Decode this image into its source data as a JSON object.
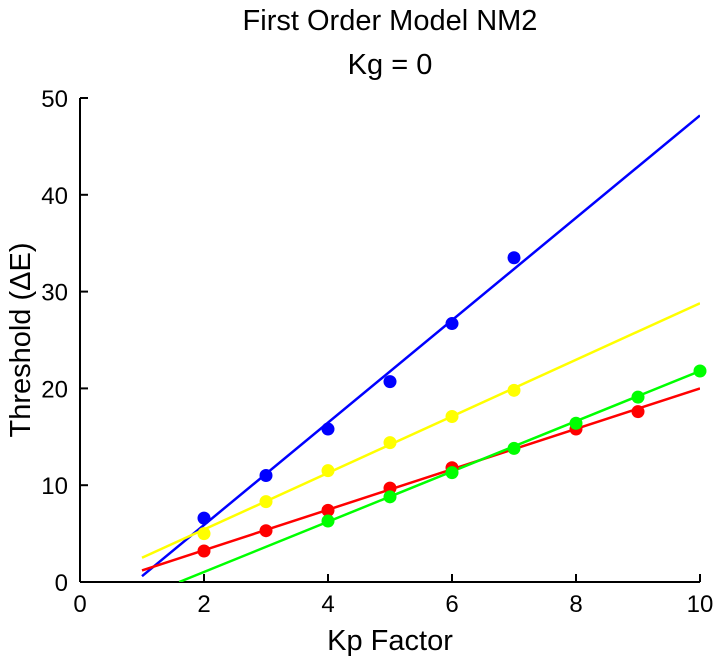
{
  "chart_data": {
    "type": "scatter",
    "title": "First Order Model NM2",
    "subtitle": "Kg = 0",
    "xlabel": "Kp Factor",
    "ylabel": "Threshold (ΔE)",
    "xlim": [
      0,
      10
    ],
    "ylim": [
      0,
      50
    ],
    "xticks": [
      0,
      2,
      4,
      6,
      8,
      10
    ],
    "yticks": [
      0,
      10,
      20,
      30,
      40,
      50
    ],
    "grid": false,
    "legend": "none",
    "series": [
      {
        "color": "#0000ff",
        "points": [
          [
            2,
            6.6
          ],
          [
            3,
            11.0
          ],
          [
            4,
            15.8
          ],
          [
            5,
            20.7
          ],
          [
            6,
            26.7
          ],
          [
            7,
            33.5
          ]
        ],
        "fit_line": [
          [
            1,
            0.6
          ],
          [
            10,
            48.2
          ]
        ]
      },
      {
        "color": "#ffff00",
        "points": [
          [
            2,
            5.0
          ],
          [
            3,
            8.3
          ],
          [
            4,
            11.5
          ],
          [
            5,
            14.4
          ],
          [
            6,
            17.1
          ],
          [
            7,
            19.8
          ]
        ],
        "fit_line": [
          [
            1,
            2.5
          ],
          [
            10,
            28.8
          ]
        ]
      },
      {
        "color": "#ff0000",
        "points": [
          [
            2,
            3.2
          ],
          [
            3,
            5.3
          ],
          [
            4,
            7.4
          ],
          [
            5,
            9.7
          ],
          [
            6,
            11.8
          ],
          [
            8,
            15.8
          ],
          [
            9,
            17.6
          ]
        ],
        "fit_line": [
          [
            1,
            1.2
          ],
          [
            10,
            20.0
          ]
        ]
      },
      {
        "color": "#00ff00",
        "points": [
          [
            4,
            6.3
          ],
          [
            5,
            8.8
          ],
          [
            6,
            11.3
          ],
          [
            7,
            13.8
          ],
          [
            8,
            16.4
          ],
          [
            9,
            19.1
          ],
          [
            10,
            21.8
          ]
        ],
        "fit_line": [
          [
            1.6,
            0.0
          ],
          [
            10,
            21.8
          ]
        ]
      }
    ]
  }
}
